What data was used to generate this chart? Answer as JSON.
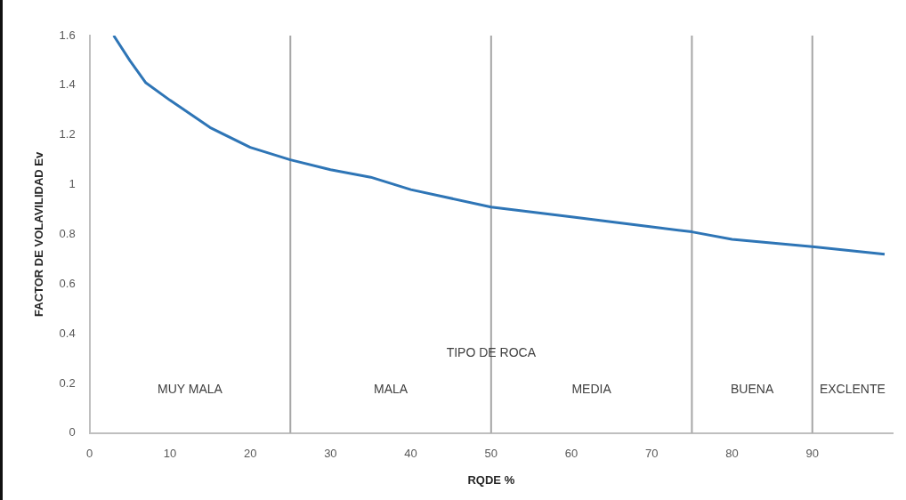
{
  "chart_data": {
    "type": "line",
    "xlabel": "RQDE %",
    "ylabel": "FACTOR DE VOLAVILIDAD Ev",
    "x": [
      3,
      5,
      7,
      10,
      15,
      20,
      25,
      30,
      35,
      40,
      50,
      60,
      70,
      75,
      80,
      90,
      99
    ],
    "series": [
      {
        "color": "#2e75b6",
        "values": [
          1.6,
          1.5,
          1.41,
          1.34,
          1.23,
          1.15,
          1.1,
          1.06,
          1.03,
          0.98,
          0.91,
          0.87,
          0.83,
          0.81,
          0.78,
          0.75,
          0.72
        ]
      }
    ],
    "xlim": [
      0,
      100
    ],
    "xticks": [
      0,
      10,
      20,
      30,
      40,
      50,
      60,
      70,
      80,
      90
    ],
    "ylim": [
      0,
      1.6
    ],
    "yticks": [
      0,
      0.2,
      0.4,
      0.6,
      0.8,
      1,
      1.2,
      1.4,
      1.6
    ],
    "grid": false,
    "legend": false,
    "marker": "none",
    "line_style": "solid",
    "ref_lines": [
      {
        "axis": "x",
        "value": 25,
        "color": "#a6a6a6"
      },
      {
        "axis": "x",
        "value": 50,
        "color": "#a6a6a6"
      },
      {
        "axis": "x",
        "value": 75,
        "color": "#a6a6a6"
      },
      {
        "axis": "x",
        "value": 90,
        "color": "#a6a6a6"
      }
    ],
    "annotations": [
      "TIPO DE ROCA",
      "MUY MALA",
      "MALA",
      "MEDIA",
      "BUENA",
      "EXCLENTE"
    ]
  }
}
